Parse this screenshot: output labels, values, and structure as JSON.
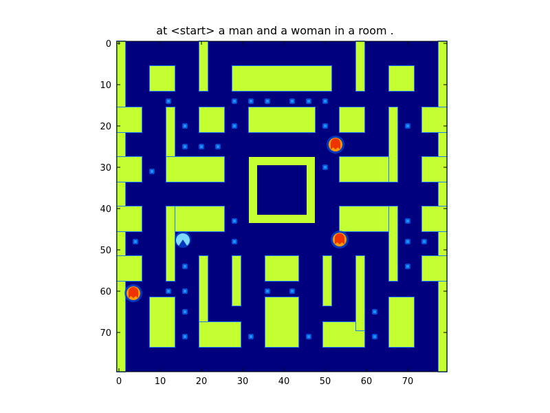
{
  "title": "at <start> a man and a woman in a room .",
  "colors": {
    "background": "#00007f",
    "wall": "#c4ff32",
    "wall_edge": "#1a7cff",
    "pellet": "#1e90ff",
    "pellet_glow": "#0050d8",
    "ghost": "#ee3300",
    "ghost_glow": "#ff9900",
    "pacman": "#7fd8ff",
    "frame": "#000000"
  },
  "chart_data": {
    "type": "heatmap",
    "title": "at <start> a man and a woman in a room .",
    "xlabel": "",
    "ylabel": "",
    "xlim": [
      -0.5,
      79.5
    ],
    "ylim": [
      79.5,
      -0.5
    ],
    "xticks": [
      0,
      10,
      20,
      30,
      40,
      50,
      60,
      70
    ],
    "yticks": [
      0,
      10,
      20,
      30,
      40,
      50,
      60,
      70
    ],
    "grid": false,
    "colormap": "jet",
    "walls": [
      {
        "x": 0,
        "y": 0,
        "w": 2,
        "h": 80
      },
      {
        "x": 78,
        "y": 0,
        "w": 2,
        "h": 80
      },
      {
        "x": 8,
        "y": 6,
        "w": 6,
        "h": 6
      },
      {
        "x": 20,
        "y": 0,
        "w": 2,
        "h": 12
      },
      {
        "x": 28,
        "y": 6,
        "w": 24,
        "h": 6
      },
      {
        "x": 58,
        "y": 0,
        "w": 2,
        "h": 12
      },
      {
        "x": 66,
        "y": 6,
        "w": 6,
        "h": 6
      },
      {
        "x": 0,
        "y": 16,
        "w": 6,
        "h": 6
      },
      {
        "x": 12,
        "y": 16,
        "w": 2,
        "h": 18
      },
      {
        "x": 12,
        "y": 28,
        "w": 14,
        "h": 6
      },
      {
        "x": 20,
        "y": 16,
        "w": 6,
        "h": 6
      },
      {
        "x": 32,
        "y": 16,
        "w": 16,
        "h": 6
      },
      {
        "x": 54,
        "y": 16,
        "w": 6,
        "h": 6
      },
      {
        "x": 54,
        "y": 28,
        "w": 14,
        "h": 6
      },
      {
        "x": 66,
        "y": 16,
        "w": 2,
        "h": 18
      },
      {
        "x": 74,
        "y": 16,
        "w": 6,
        "h": 6
      },
      {
        "x": 0,
        "y": 28,
        "w": 6,
        "h": 6
      },
      {
        "x": 74,
        "y": 28,
        "w": 6,
        "h": 6
      },
      {
        "x": 0,
        "y": 40,
        "w": 6,
        "h": 6
      },
      {
        "x": 74,
        "y": 40,
        "w": 6,
        "h": 6
      },
      {
        "x": 12,
        "y": 40,
        "w": 14,
        "h": 6
      },
      {
        "x": 12,
        "y": 40,
        "w": 2,
        "h": 18
      },
      {
        "x": 54,
        "y": 40,
        "w": 14,
        "h": 6
      },
      {
        "x": 66,
        "y": 40,
        "w": 2,
        "h": 18
      },
      {
        "x": 0,
        "y": 52,
        "w": 6,
        "h": 6
      },
      {
        "x": 74,
        "y": 52,
        "w": 6,
        "h": 6
      },
      {
        "x": 20,
        "y": 52,
        "w": 2,
        "h": 18
      },
      {
        "x": 20,
        "y": 68,
        "w": 10,
        "h": 6
      },
      {
        "x": 28,
        "y": 52,
        "w": 2,
        "h": 12
      },
      {
        "x": 36,
        "y": 52,
        "w": 8,
        "h": 6
      },
      {
        "x": 50,
        "y": 52,
        "w": 2,
        "h": 12
      },
      {
        "x": 50,
        "y": 68,
        "w": 10,
        "h": 6
      },
      {
        "x": 58,
        "y": 52,
        "w": 2,
        "h": 18
      },
      {
        "x": 36,
        "y": 62,
        "w": 8,
        "h": 12
      },
      {
        "x": 8,
        "y": 62,
        "w": 6,
        "h": 12
      },
      {
        "x": 66,
        "y": 62,
        "w": 6,
        "h": 12
      }
    ],
    "ghost_box": {
      "x": 32,
      "y": 28,
      "w": 16,
      "h": 16,
      "thickness": 2
    },
    "pellets": [
      [
        12,
        14
      ],
      [
        28,
        14
      ],
      [
        32,
        14
      ],
      [
        36,
        14
      ],
      [
        42,
        14
      ],
      [
        46,
        14
      ],
      [
        50,
        14
      ],
      [
        16,
        20
      ],
      [
        28,
        20
      ],
      [
        50,
        20
      ],
      [
        70,
        20
      ],
      [
        16,
        25
      ],
      [
        20,
        25
      ],
      [
        24,
        25
      ],
      [
        50,
        30
      ],
      [
        8,
        31
      ],
      [
        28,
        43
      ],
      [
        70,
        43
      ],
      [
        4,
        48
      ],
      [
        28,
        48
      ],
      [
        70,
        48
      ],
      [
        74,
        48
      ],
      [
        16,
        54
      ],
      [
        70,
        54
      ],
      [
        12,
        60
      ],
      [
        16,
        60
      ],
      [
        36,
        60
      ],
      [
        42,
        60
      ],
      [
        16,
        65
      ],
      [
        62,
        65
      ],
      [
        16,
        71
      ],
      [
        32,
        71
      ],
      [
        46,
        71
      ],
      [
        62,
        71
      ]
    ],
    "ghosts": [
      {
        "x": 53,
        "y": 25
      },
      {
        "x": 54,
        "y": 48
      },
      {
        "x": 4,
        "y": 61
      }
    ],
    "pacman": {
      "x": 16,
      "y": 48
    }
  }
}
